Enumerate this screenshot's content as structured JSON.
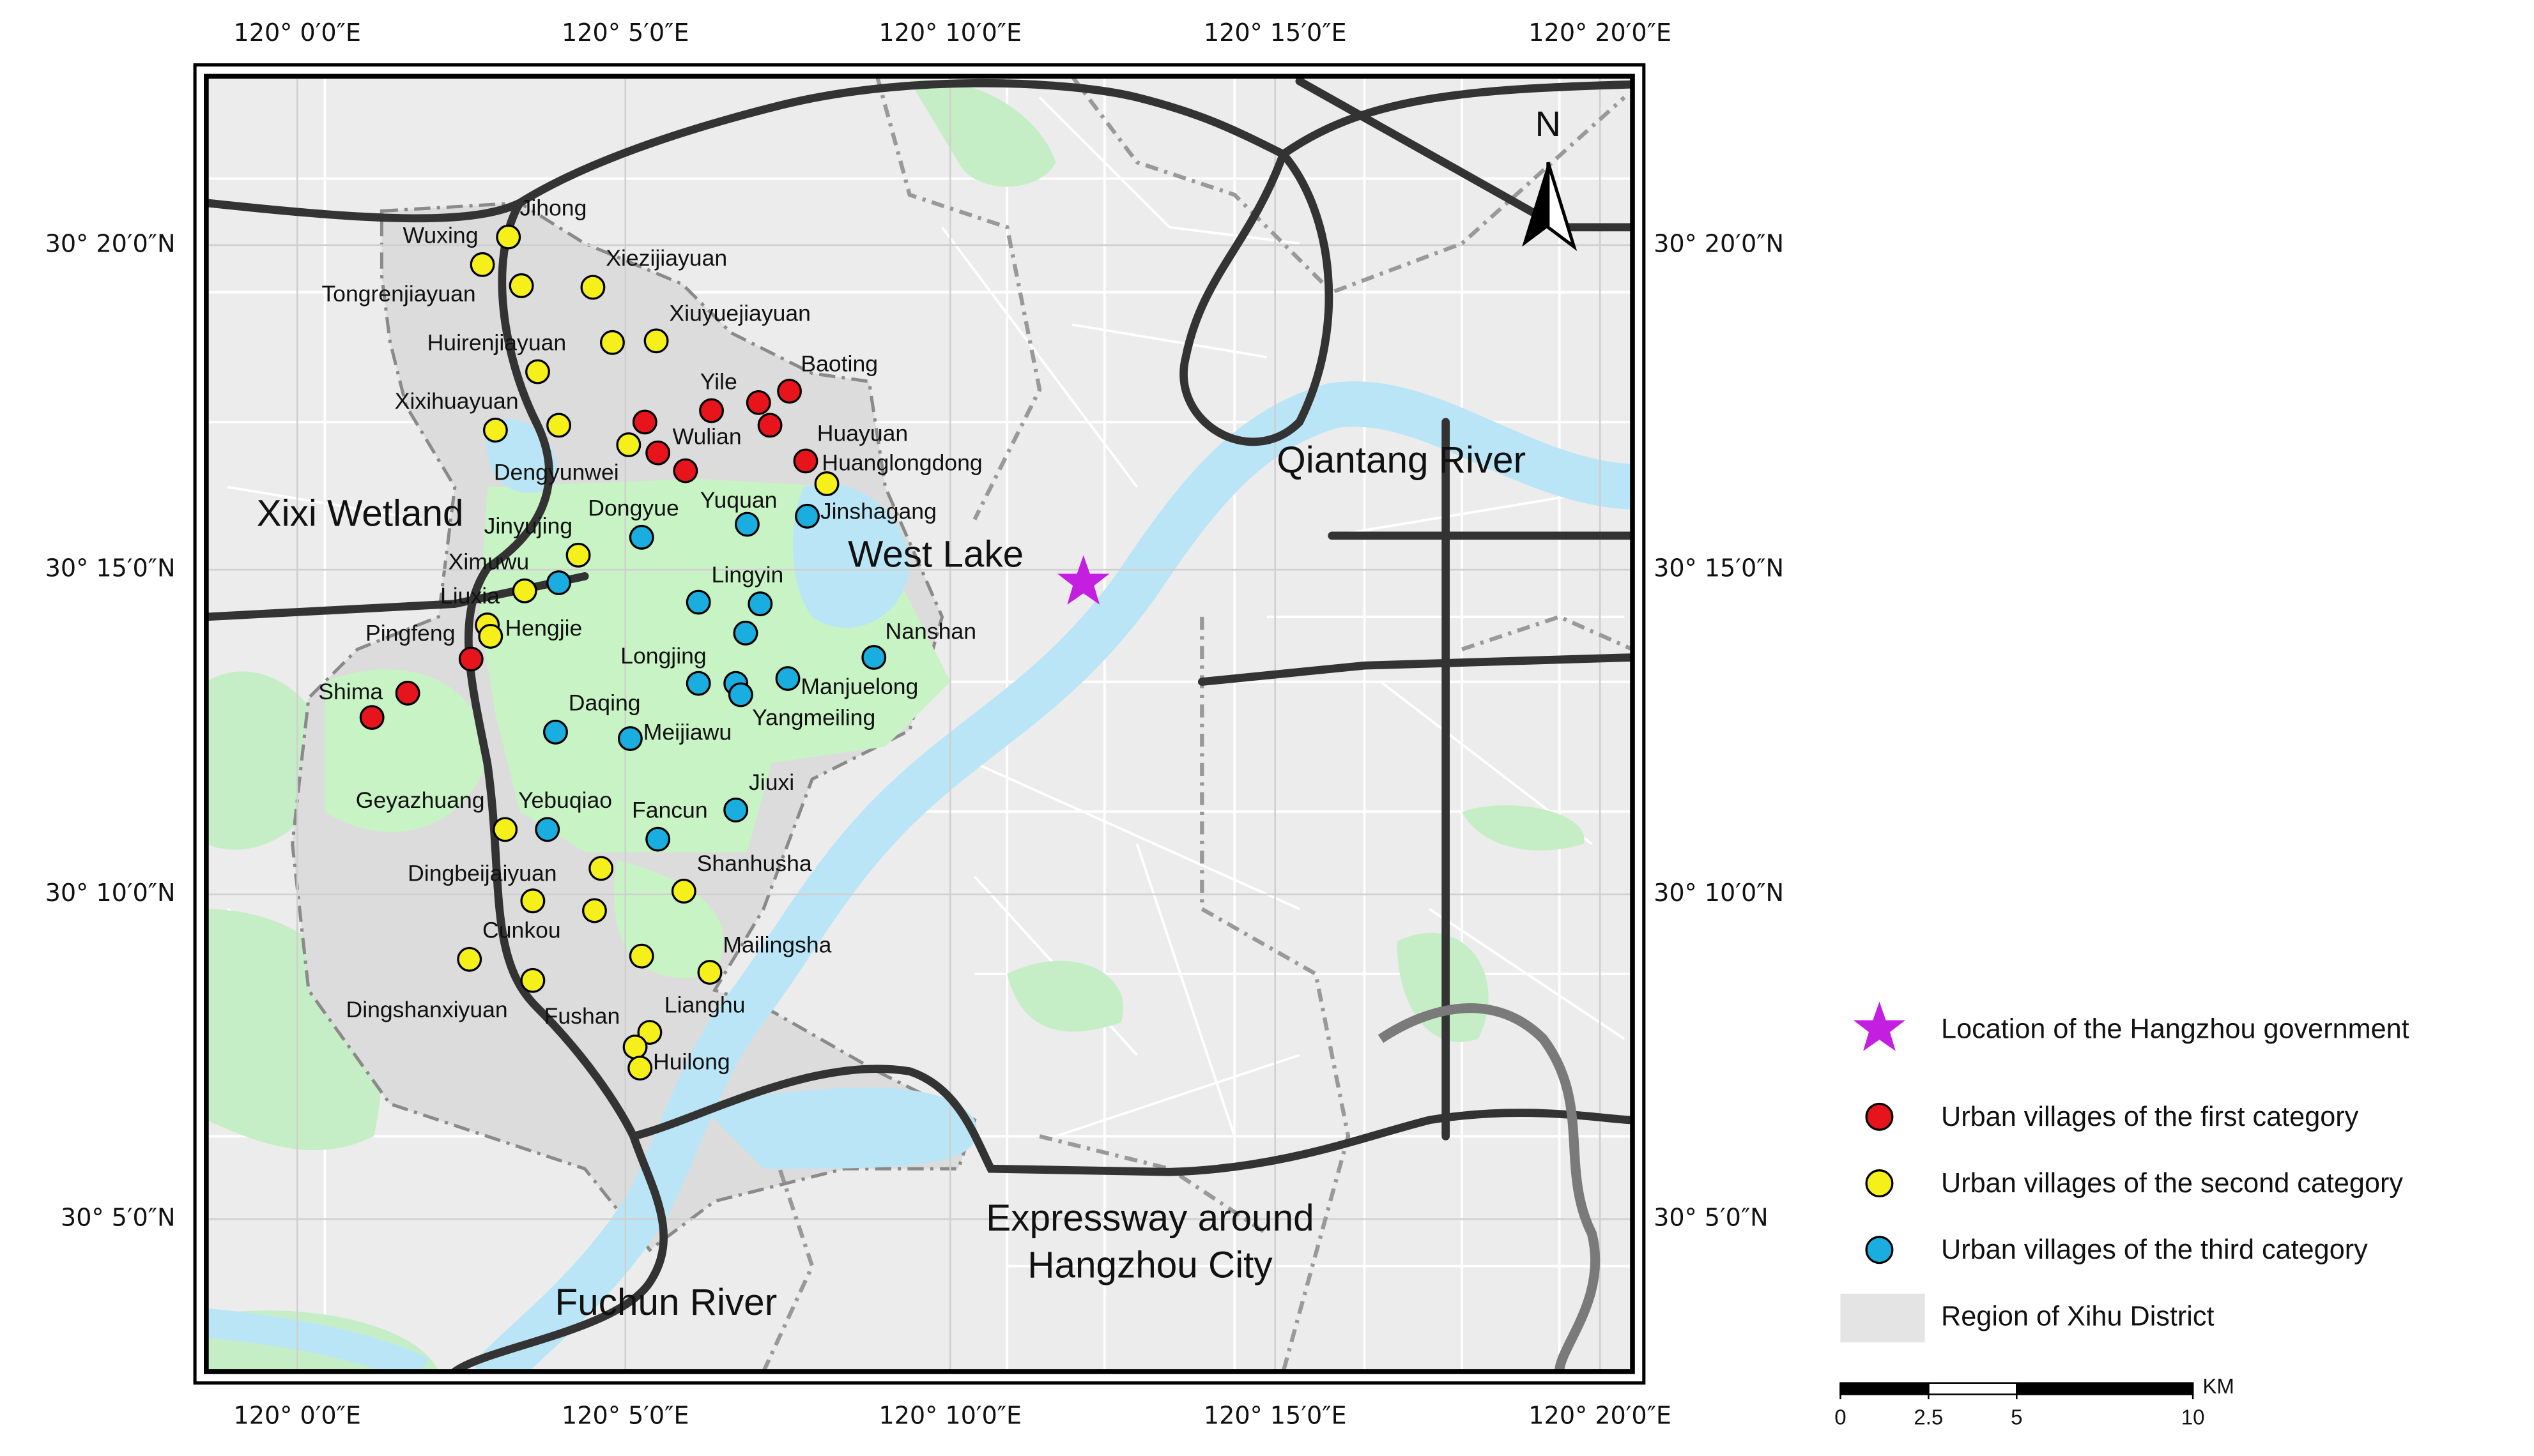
{
  "map": {
    "lon_labels": [
      "120° 0′0″E",
      "120° 5′0″E",
      "120° 10′0″E",
      "120° 15′0″E",
      "120° 20′0″E"
    ],
    "lat_labels": [
      "30° 20′0″N",
      "30° 15′0″N",
      "30° 10′0″N",
      "30° 5′0″N"
    ],
    "north": "N",
    "places": {
      "xixi": "Xixi Wetland",
      "west_lake": "West Lake",
      "qiantang": "Qiantang River",
      "expressway": [
        "Expressway around",
        "Hangzhou City"
      ],
      "fuchun": "Fuchun River"
    }
  },
  "legend": {
    "government": "Location of the Hangzhou government",
    "xihu": "Region of Xihu District"
  },
  "villages": [
    {
      "name": "Urban villages of the first category",
      "color": "#e8141b",
      "labels": [
        "Yile",
        null,
        "Baoting",
        null,
        null,
        "Wulian",
        null,
        "Huayuan",
        "Pingfeng",
        "Shima",
        null
      ]
    },
    {
      "name": "Urban villages of the second category",
      "color": "#f6f01a",
      "labels": [
        "Jihong",
        "Wuxing",
        "Tongrenjiayuan",
        "Xiezijiayuan",
        "Huirenjiayuan",
        "Xiuyuejiayuan",
        null,
        "Xixihuayuan",
        null,
        "Dengyunwei",
        "Huanglongdong",
        "Jinyujing",
        "Ximuwu",
        "Liuxia",
        "Hengjie",
        "Geyazhuang",
        "Dingbeijaiyuan",
        null,
        "Shanhusha",
        null,
        null,
        "Cunkou",
        "Dingshanxiyuan",
        "Mailingsha",
        "Lianghu",
        "Fushan",
        "Huilong"
      ]
    },
    {
      "name": "Urban villages of the third category",
      "color": "#1aaee0",
      "labels": [
        "Dongyue",
        "Yuquan",
        "Jinshagang",
        null,
        null,
        "Lingyin",
        null,
        "Nanshan",
        "Longjing",
        null,
        "Yangmeiling",
        "Manjuelong",
        "Daqing",
        "Meijiawu",
        "Jiuxi",
        "Yebuqiao",
        "Fancun"
      ]
    }
  ],
  "scale_bar": {
    "unit": "KM",
    "ticks": [
      0,
      2.5,
      5,
      10
    ]
  }
}
